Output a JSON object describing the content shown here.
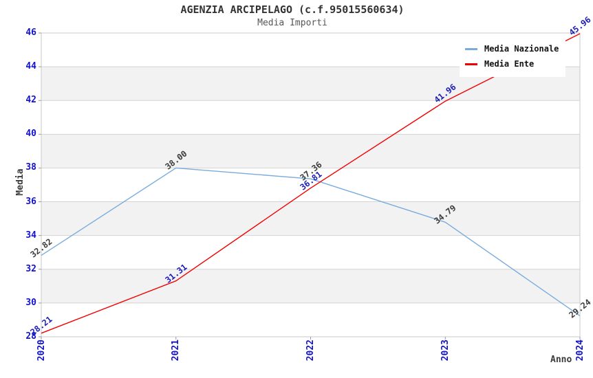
{
  "chart_data": {
    "type": "line",
    "title": "AGENZIA ARCIPELAGO (c.f.95015560634)",
    "subtitle": "Media Importi",
    "xlabel": "Anno",
    "ylabel": "Media",
    "x_categories": [
      "2020",
      "2021",
      "2022",
      "2023",
      "2024"
    ],
    "ylim": [
      28,
      46
    ],
    "ytick_step": 2,
    "grid": "horizontal-bands",
    "legend_position": "top-right",
    "series": [
      {
        "name": "Media Nazionale",
        "color": "#79ABDC",
        "label_color": "#3C3C3C",
        "values": [
          32.82,
          38.0,
          37.36,
          34.79,
          29.24
        ]
      },
      {
        "name": "Media Ente",
        "color": "#F20000",
        "label_color": "#1C1CB8",
        "values": [
          28.21,
          31.31,
          36.81,
          41.96,
          45.96
        ]
      }
    ],
    "colors": {
      "tick_label": "#1212CE",
      "axis_label": "#3A3A3A",
      "band_fill": "#F2F2F2",
      "grid_line": "#D4D4D4",
      "border": "#C9C9C9",
      "tick_mark": "#999999",
      "background": "#FFFFFF"
    }
  }
}
